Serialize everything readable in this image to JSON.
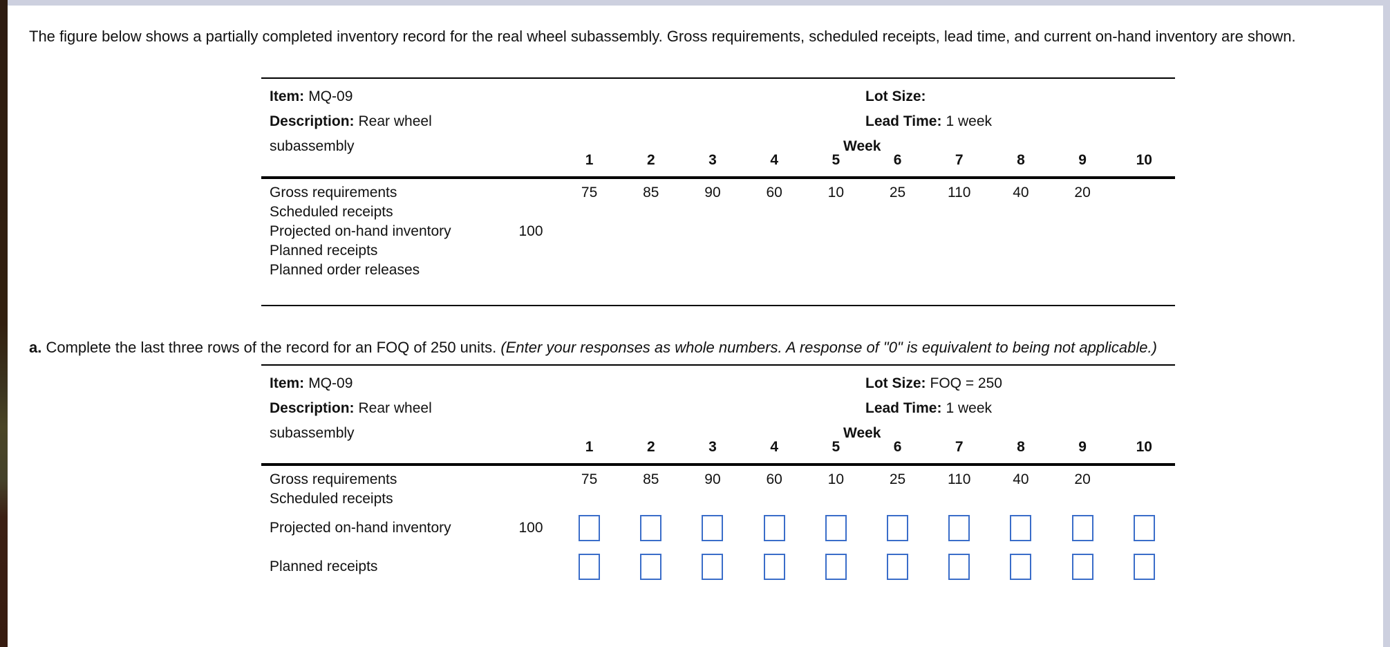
{
  "colors": {
    "frame_strip": "#cdd0df",
    "desktop_edge_brown": "#33200f",
    "input_border_blue": "#3a6dc9",
    "rule_black": "#000000"
  },
  "intro": "The figure below shows a partially completed inventory record for the real wheel subassembly. Gross requirements, scheduled receipts, lead time, and current on-hand inventory are shown.",
  "part_a": {
    "label": "a.",
    "text": "Complete the last three rows of the record for an FOQ of 250 units.",
    "note_italic": "(Enter your responses as whole numbers. A response of \"0\" is equivalent to being not applicable.)"
  },
  "tables": [
    {
      "name": "initial-inventory-record",
      "item_label": "Item:",
      "item_value": "MQ-09",
      "description_label": "Description:",
      "description_value": "Rear wheel subassembly",
      "lot_size_label": "Lot Size:",
      "lot_size_value": "",
      "lead_time_label": "Lead Time:",
      "lead_time_value": "1 week",
      "week_label": "Week",
      "weeks": [
        "1",
        "2",
        "3",
        "4",
        "5",
        "6",
        "7",
        "8",
        "9",
        "10"
      ],
      "rows": [
        {
          "label": "Gross requirements",
          "type": "text",
          "begin": "",
          "cells": [
            "75",
            "85",
            "90",
            "60",
            "10",
            "25",
            "110",
            "40",
            "20",
            ""
          ]
        },
        {
          "label": "Scheduled receipts",
          "type": "text",
          "begin": "",
          "cells": [
            "",
            "",
            "",
            "",
            "",
            "",
            "",
            "",
            "",
            ""
          ]
        },
        {
          "label": "Projected on-hand inventory",
          "type": "text",
          "begin": "100",
          "cells": [
            "",
            "",
            "",
            "",
            "",
            "",
            "",
            "",
            "",
            ""
          ]
        },
        {
          "label": "Planned receipts",
          "type": "text",
          "begin": "",
          "cells": [
            "",
            "",
            "",
            "",
            "",
            "",
            "",
            "",
            "",
            ""
          ]
        },
        {
          "label": "Planned order releases",
          "type": "text",
          "begin": "",
          "cells": [
            "",
            "",
            "",
            "",
            "",
            "",
            "",
            "",
            "",
            ""
          ]
        }
      ]
    },
    {
      "name": "foq-answer-record",
      "item_label": "Item:",
      "item_value": "MQ-09",
      "description_label": "Description:",
      "description_value": "Rear wheel subassembly",
      "lot_size_label": "Lot Size:",
      "lot_size_value": "FOQ = 250",
      "lead_time_label": "Lead Time:",
      "lead_time_value": "1 week",
      "week_label": "Week",
      "weeks": [
        "1",
        "2",
        "3",
        "4",
        "5",
        "6",
        "7",
        "8",
        "9",
        "10"
      ],
      "rows": [
        {
          "label": "Gross requirements",
          "type": "text",
          "begin": "",
          "cells": [
            "75",
            "85",
            "90",
            "60",
            "10",
            "25",
            "110",
            "40",
            "20",
            ""
          ]
        },
        {
          "label": "Scheduled receipts",
          "type": "text",
          "begin": "",
          "cells": [
            "",
            "",
            "",
            "",
            "",
            "",
            "",
            "",
            "",
            ""
          ]
        },
        {
          "label": "Projected on-hand inventory",
          "type": "input",
          "begin": "100",
          "cells": [
            "",
            "",
            "",
            "",
            "",
            "",
            "",
            "",
            "",
            ""
          ]
        },
        {
          "label": "Planned receipts",
          "type": "input",
          "begin": "",
          "cells": [
            "",
            "",
            "",
            "",
            "",
            "",
            "",
            "",
            "",
            ""
          ]
        }
      ]
    }
  ]
}
